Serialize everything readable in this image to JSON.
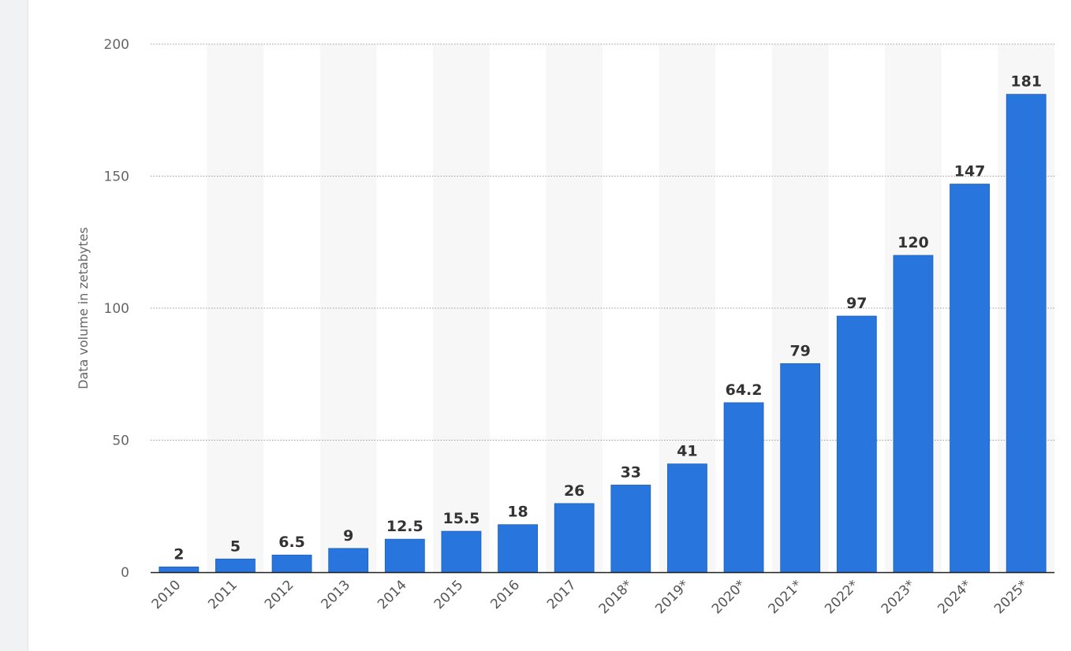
{
  "chart_data": {
    "type": "bar",
    "title": "",
    "xlabel": "",
    "ylabel": "Data volume in zetabytes",
    "ylim": [
      0,
      200
    ],
    "yticks": [
      0,
      50,
      100,
      150,
      200
    ],
    "grid": true,
    "legend": "none",
    "bar_color": "#2876dd",
    "categories": [
      "2010",
      "2011",
      "2012",
      "2013",
      "2014",
      "2015",
      "2016",
      "2017",
      "2018*",
      "2019*",
      "2020*",
      "2021*",
      "2022*",
      "2023*",
      "2024*",
      "2025*"
    ],
    "values": [
      2,
      5,
      6.5,
      9,
      12.5,
      15.5,
      18,
      26,
      33,
      41,
      64.2,
      79,
      97,
      120,
      147,
      181
    ],
    "value_labels": [
      "2",
      "5",
      "6.5",
      "9",
      "12.5",
      "15.5",
      "18",
      "26",
      "33",
      "41",
      "64.2",
      "79",
      "97",
      "120",
      "147",
      "181"
    ]
  }
}
